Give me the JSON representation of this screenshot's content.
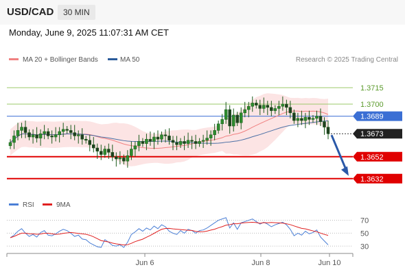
{
  "header": {
    "symbol": "USD/CAD",
    "timeframe": "30 MIN",
    "datetime": "Monday, June 9, 2025 11:07:31 AM CET"
  },
  "chart_data": [
    {
      "type": "candlestick",
      "legend": [
        {
          "name": "MA 20 + Bollinger Bands",
          "color": "#f08080"
        },
        {
          "name": "MA 50",
          "color": "#2a5a9a"
        }
      ],
      "credit": "Research © 2025 Trading Central",
      "ylim": [
        1.3625,
        1.373
      ],
      "levels": [
        {
          "label": "1.3715",
          "value": 1.3715,
          "kind": "green-line"
        },
        {
          "label": "1.3700",
          "value": 1.37,
          "kind": "green-line"
        },
        {
          "label": "1.3689",
          "value": 1.3689,
          "kind": "blue-line"
        },
        {
          "label": "1.3673",
          "value": 1.3673,
          "kind": "current-price"
        },
        {
          "label": "1.3652",
          "value": 1.3652,
          "kind": "red-line"
        },
        {
          "label": "1.3632",
          "value": 1.3632,
          "kind": "red-line"
        }
      ],
      "forecast_arrow": {
        "from": 1.3673,
        "to": 1.3632
      },
      "closes": [
        1.3665,
        1.3671,
        1.3676,
        1.3679,
        1.3674,
        1.367,
        1.3672,
        1.3669,
        1.3673,
        1.3675,
        1.3671,
        1.367,
        1.3672,
        1.3675,
        1.3677,
        1.3676,
        1.3674,
        1.3671,
        1.3672,
        1.3668,
        1.3667,
        1.3663,
        1.366,
        1.3657,
        1.3654,
        1.3659,
        1.3656,
        1.3652,
        1.365,
        1.3651,
        1.3648,
        1.3653,
        1.3659,
        1.3662,
        1.3666,
        1.3664,
        1.3668,
        1.3666,
        1.367,
        1.3668,
        1.3672,
        1.3671,
        1.3667,
        1.3665,
        1.3663,
        1.3666,
        1.3664,
        1.3667,
        1.3666,
        1.3664,
        1.3666,
        1.3667,
        1.3669,
        1.3672,
        1.3676,
        1.3682,
        1.3686,
        1.3695,
        1.368,
        1.369,
        1.3683,
        1.3692,
        1.3695,
        1.3698,
        1.3701,
        1.3699,
        1.3696,
        1.3699,
        1.3697,
        1.3694,
        1.3696,
        1.3698,
        1.37,
        1.3697,
        1.3692,
        1.3685,
        1.3687,
        1.3685,
        1.3688,
        1.3686,
        1.3687,
        1.3689,
        1.3684,
        1.3679,
        1.3673
      ],
      "x_ticks": [
        "Jun 6",
        "Jun 8",
        "Jun 10"
      ]
    },
    {
      "type": "line",
      "legend": [
        {
          "name": "RSI",
          "color": "#4a7fd6"
        },
        {
          "name": "9MA",
          "color": "#e02020"
        }
      ],
      "ylim": [
        25,
        78
      ],
      "y_ticks": [
        "70",
        "50",
        "30"
      ],
      "rsi": [
        43,
        47,
        53,
        57,
        50,
        45,
        48,
        44,
        51,
        54,
        47,
        46,
        49,
        53,
        56,
        54,
        50,
        45,
        47,
        41,
        40,
        35,
        32,
        29,
        28,
        40,
        36,
        31,
        30,
        32,
        28,
        36,
        48,
        52,
        57,
        53,
        58,
        55,
        61,
        57,
        63,
        60,
        53,
        50,
        48,
        54,
        50,
        56,
        54,
        50,
        54,
        55,
        58,
        62,
        66,
        70,
        72,
        74,
        58,
        66,
        56,
        66,
        68,
        70,
        72,
        68,
        64,
        67,
        64,
        60,
        63,
        65,
        67,
        63,
        56,
        46,
        50,
        47,
        53,
        49,
        51,
        55,
        44,
        38,
        32
      ]
    }
  ]
}
